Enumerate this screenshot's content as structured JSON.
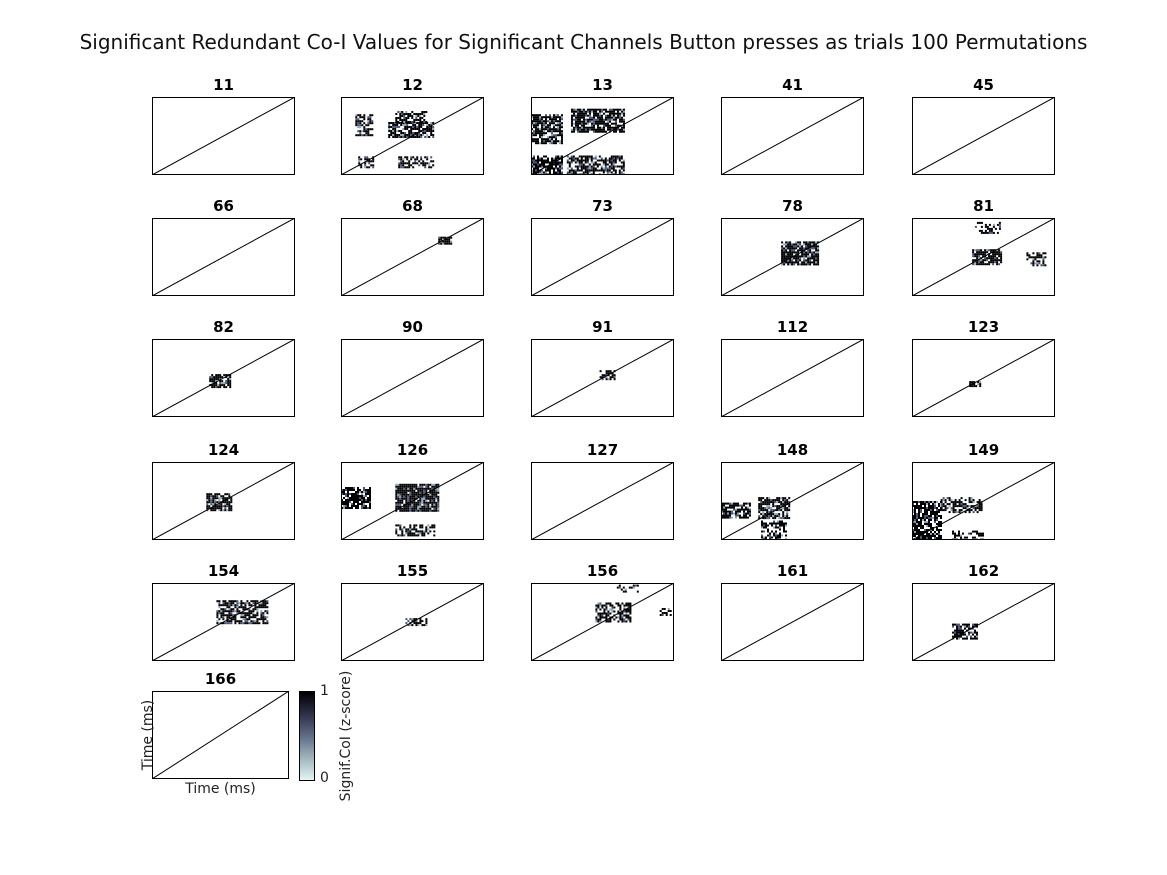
{
  "chart_data": {
    "type": "heatmap",
    "title": "Significant Redundant Co-I Values for Significant Channels Button presses as trials 100 Permutations",
    "xlabel": "Time (ms)",
    "ylabel": "Time (ms)",
    "colorbar": {
      "label": "Signif.CoI (z-score)",
      "min": 0,
      "max": 1,
      "min_label": "0",
      "max_label": "1"
    },
    "colormap": [
      "#ffffff",
      "#d8eeec",
      "#8fa6b3",
      "#4c5677",
      "#000000"
    ],
    "panels": [
      {
        "channel": "11",
        "clusters": []
      },
      {
        "channel": "12",
        "clusters": [
          {
            "x": [
              0.1,
              0.22
            ],
            "y": [
              0.52,
              0.78
            ],
            "density": 0.7
          },
          {
            "x": [
              0.33,
              0.65
            ],
            "y": [
              0.5,
              0.68
            ],
            "density": 0.8
          },
          {
            "x": [
              0.38,
              0.6
            ],
            "y": [
              0.68,
              0.82
            ],
            "density": 0.6
          },
          {
            "x": [
              0.12,
              0.22
            ],
            "y": [
              0.1,
              0.24
            ],
            "density": 0.6
          },
          {
            "x": [
              0.4,
              0.65
            ],
            "y": [
              0.1,
              0.24
            ],
            "density": 0.6
          }
        ]
      },
      {
        "channel": "13",
        "clusters": [
          {
            "x": [
              0.0,
              0.22
            ],
            "y": [
              0.4,
              0.78
            ],
            "density": 0.8
          },
          {
            "x": [
              0.28,
              0.65
            ],
            "y": [
              0.55,
              0.85
            ],
            "density": 0.8
          },
          {
            "x": [
              0.0,
              0.22
            ],
            "y": [
              0.0,
              0.25
            ],
            "density": 0.8
          },
          {
            "x": [
              0.25,
              0.65
            ],
            "y": [
              0.0,
              0.25
            ],
            "density": 0.7
          }
        ]
      },
      {
        "channel": "41",
        "clusters": []
      },
      {
        "channel": "45",
        "clusters": []
      },
      {
        "channel": "66",
        "clusters": []
      },
      {
        "channel": "68",
        "clusters": [
          {
            "x": [
              0.68,
              0.77
            ],
            "y": [
              0.68,
              0.76
            ],
            "density": 0.9
          }
        ]
      },
      {
        "channel": "73",
        "clusters": []
      },
      {
        "channel": "78",
        "clusters": [
          {
            "x": [
              0.42,
              0.68
            ],
            "y": [
              0.4,
              0.7
            ],
            "density": 0.85
          }
        ]
      },
      {
        "channel": "81",
        "clusters": [
          {
            "x": [
              0.42,
              0.62
            ],
            "y": [
              0.4,
              0.6
            ],
            "density": 0.85
          },
          {
            "x": [
              0.44,
              0.62
            ],
            "y": [
              0.82,
              0.95
            ],
            "density": 0.5
          },
          {
            "x": [
              0.8,
              0.93
            ],
            "y": [
              0.4,
              0.56
            ],
            "density": 0.6
          }
        ]
      },
      {
        "channel": "82",
        "clusters": [
          {
            "x": [
              0.4,
              0.54
            ],
            "y": [
              0.38,
              0.55
            ],
            "density": 0.8
          }
        ]
      },
      {
        "channel": "90",
        "clusters": []
      },
      {
        "channel": "91",
        "clusters": [
          {
            "x": [
              0.48,
              0.58
            ],
            "y": [
              0.48,
              0.6
            ],
            "density": 0.7
          }
        ]
      },
      {
        "channel": "112",
        "clusters": []
      },
      {
        "channel": "123",
        "clusters": [
          {
            "x": [
              0.4,
              0.48
            ],
            "y": [
              0.4,
              0.46
            ],
            "density": 0.9
          }
        ]
      },
      {
        "channel": "124",
        "clusters": [
          {
            "x": [
              0.38,
              0.55
            ],
            "y": [
              0.38,
              0.6
            ],
            "density": 0.8
          }
        ]
      },
      {
        "channel": "126",
        "clusters": [
          {
            "x": [
              0.0,
              0.2
            ],
            "y": [
              0.4,
              0.68
            ],
            "density": 0.75
          },
          {
            "x": [
              0.38,
              0.68
            ],
            "y": [
              0.38,
              0.72
            ],
            "density": 0.9
          },
          {
            "x": [
              0.38,
              0.65
            ],
            "y": [
              0.05,
              0.2
            ],
            "density": 0.6
          }
        ]
      },
      {
        "channel": "127",
        "clusters": []
      },
      {
        "channel": "148",
        "clusters": [
          {
            "x": [
              0.0,
              0.2
            ],
            "y": [
              0.3,
              0.48
            ],
            "density": 0.75
          },
          {
            "x": [
              0.26,
              0.48
            ],
            "y": [
              0.28,
              0.55
            ],
            "density": 0.75
          },
          {
            "x": [
              0.28,
              0.45
            ],
            "y": [
              0.0,
              0.25
            ],
            "density": 0.6
          }
        ]
      },
      {
        "channel": "149",
        "clusters": [
          {
            "x": [
              0.0,
              0.2
            ],
            "y": [
              0.0,
              0.5
            ],
            "density": 0.75
          },
          {
            "x": [
              0.2,
              0.48
            ],
            "y": [
              0.35,
              0.55
            ],
            "density": 0.6
          },
          {
            "x": [
              0.28,
              0.5
            ],
            "y": [
              0.0,
              0.12
            ],
            "density": 0.5
          }
        ]
      },
      {
        "channel": "154",
        "clusters": [
          {
            "x": [
              0.45,
              0.8
            ],
            "y": [
              0.48,
              0.78
            ],
            "density": 0.7
          }
        ]
      },
      {
        "channel": "155",
        "clusters": [
          {
            "x": [
              0.45,
              0.6
            ],
            "y": [
              0.45,
              0.55
            ],
            "density": 0.6
          }
        ]
      },
      {
        "channel": "156",
        "clusters": [
          {
            "x": [
              0.45,
              0.7
            ],
            "y": [
              0.5,
              0.75
            ],
            "density": 0.7
          },
          {
            "x": [
              0.6,
              0.75
            ],
            "y": [
              0.9,
              0.98
            ],
            "density": 0.4
          },
          {
            "x": [
              0.9,
              0.97
            ],
            "y": [
              0.6,
              0.68
            ],
            "density": 0.5
          }
        ]
      },
      {
        "channel": "161",
        "clusters": []
      },
      {
        "channel": "162",
        "clusters": [
          {
            "x": [
              0.28,
              0.45
            ],
            "y": [
              0.28,
              0.48
            ],
            "density": 0.7
          }
        ]
      },
      {
        "channel": "166",
        "clusters": []
      }
    ]
  }
}
